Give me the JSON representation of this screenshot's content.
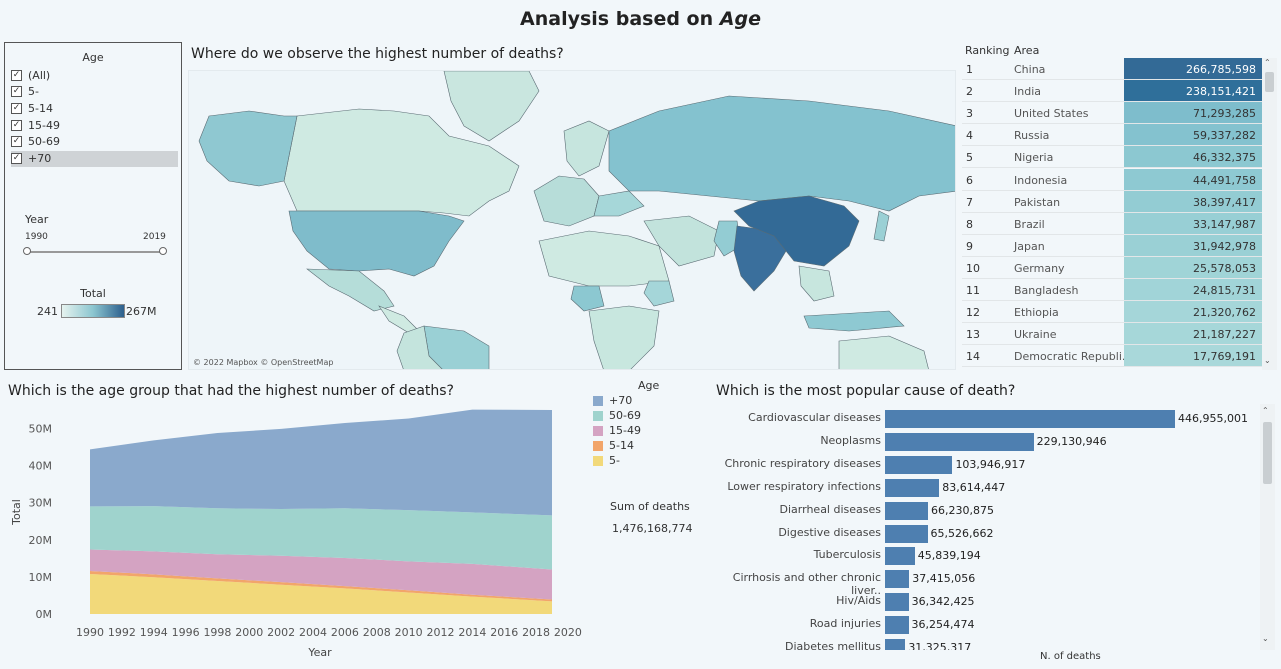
{
  "title_prefix": "Analysis based on ",
  "title_em": "Age",
  "filters": {
    "age_heading": "Age",
    "age_options": [
      "(All)",
      "5-",
      "5-14",
      "15-49",
      "50-69",
      "+70"
    ],
    "check_mark": "✓",
    "year_heading": "Year",
    "year_min": "1990",
    "year_max": "2019",
    "total_heading": "Total",
    "total_min": "241",
    "total_max": "267M"
  },
  "map": {
    "title": "Where do we observe the highest number of deaths?",
    "attribution": "© 2022 Mapbox © OpenStreetMap"
  },
  "ranking": {
    "headers": [
      "Ranking",
      "Area"
    ],
    "rows": [
      {
        "rank": "1",
        "area": "China",
        "value": "266,785,598",
        "color": "#336a96"
      },
      {
        "rank": "2",
        "area": "India",
        "value": "238,151,421",
        "color": "#2f6f9a"
      },
      {
        "rank": "3",
        "area": "United States",
        "value": "71,293,285",
        "color": "#7ebdcc"
      },
      {
        "rank": "4",
        "area": "Russia",
        "value": "59,337,282",
        "color": "#84c2cf"
      },
      {
        "rank": "5",
        "area": "Nigeria",
        "value": "46,332,375",
        "color": "#8cc8d1"
      },
      {
        "rank": "6",
        "area": "Indonesia",
        "value": "44,491,758",
        "color": "#8ec9d2"
      },
      {
        "rank": "7",
        "area": "Pakistan",
        "value": "38,397,417",
        "color": "#93ccd3"
      },
      {
        "rank": "8",
        "area": "Brazil",
        "value": "33,147,987",
        "color": "#98cfd5"
      },
      {
        "rank": "9",
        "area": "Japan",
        "value": "31,942,978",
        "color": "#9ad0d5"
      },
      {
        "rank": "10",
        "area": "Germany",
        "value": "25,578,053",
        "color": "#a0d4d7"
      },
      {
        "rank": "11",
        "area": "Bangladesh",
        "value": "24,815,731",
        "color": "#a1d4d8"
      },
      {
        "rank": "12",
        "area": "Ethiopia",
        "value": "21,320,762",
        "color": "#a5d6d9"
      },
      {
        "rank": "13",
        "area": "Ukraine",
        "value": "21,187,227",
        "color": "#a6d7d9"
      },
      {
        "rank": "14",
        "area": "Democratic Republi..",
        "value": "17,769,191",
        "color": "#a9d8da"
      }
    ]
  },
  "area_chart": {
    "title": "Which is the age group that had the highest number of deaths?",
    "legend_title": "Age",
    "sum_label": "Sum of deaths",
    "sum_value": "1,476,168,774"
  },
  "bar_chart_title": "Which is the most popular cause of death?",
  "chart_data": [
    {
      "type": "area",
      "xlabel": "Year",
      "ylabel": "Total",
      "xlim": [
        1990,
        2020
      ],
      "ylim": [
        0,
        55
      ],
      "x_ticks": [
        "1990",
        "1992",
        "1994",
        "1996",
        "1998",
        "2000",
        "2002",
        "2004",
        "2006",
        "2008",
        "2010",
        "2012",
        "2014",
        "2016",
        "2018",
        "2020"
      ],
      "y_ticks": [
        "0M",
        "10M",
        "20M",
        "30M",
        "40M",
        "50M"
      ],
      "y_tick_values": [
        0,
        10,
        20,
        30,
        40,
        50
      ],
      "stacked": true,
      "x": [
        1990,
        1994,
        1998,
        2002,
        2006,
        2010,
        2014,
        2019
      ],
      "series": [
        {
          "name": "5-",
          "color": "#f2d97a",
          "values": [
            10.8,
            9.9,
            8.9,
            7.9,
            6.9,
            5.8,
            4.7,
            3.4
          ]
        },
        {
          "name": "5-14",
          "color": "#f2a56a",
          "values": [
            0.8,
            0.8,
            0.7,
            0.7,
            0.6,
            0.6,
            0.5,
            0.5
          ]
        },
        {
          "name": "15-49",
          "color": "#d4a3c2",
          "values": [
            5.8,
            6.2,
            6.5,
            7.1,
            7.6,
            7.8,
            8.3,
            8.1
          ]
        },
        {
          "name": "50-69",
          "color": "#9fd3cd",
          "values": [
            11.6,
            12.2,
            12.4,
            12.6,
            13.4,
            13.8,
            13.9,
            14.6
          ]
        },
        {
          "name": "+70",
          "color": "#8aa9cc",
          "values": [
            15.4,
            17.7,
            20.3,
            21.6,
            23.0,
            24.7,
            27.7,
            28.4
          ]
        }
      ],
      "legend_order": [
        "+70",
        "50-69",
        "15-49",
        "5-14",
        "5-"
      ]
    },
    {
      "type": "bar",
      "orientation": "horizontal",
      "xlabel": "N. of deaths",
      "categories": [
        "Cardiovascular diseases",
        "Neoplasms",
        "Chronic respiratory diseases",
        "Lower respiratory infections",
        "Diarrheal diseases",
        "Digestive diseases",
        "Tuberculosis",
        "Cirrhosis and other chronic liver..",
        "Hiv/Aids",
        "Road injuries",
        "Diabetes mellitus"
      ],
      "values": [
        446955001,
        229130946,
        103946917,
        83614447,
        66230875,
        65526662,
        45839194,
        37415056,
        36342425,
        36254474,
        31325317
      ],
      "labels": [
        "446,955,001",
        "229,130,946",
        "103,946,917",
        "83,614,447",
        "66,230,875",
        "65,526,662",
        "45,839,194",
        "37,415,056",
        "36,342,425",
        "36,254,474",
        "31,325,317"
      ],
      "color": "#4e7fb0"
    }
  ]
}
